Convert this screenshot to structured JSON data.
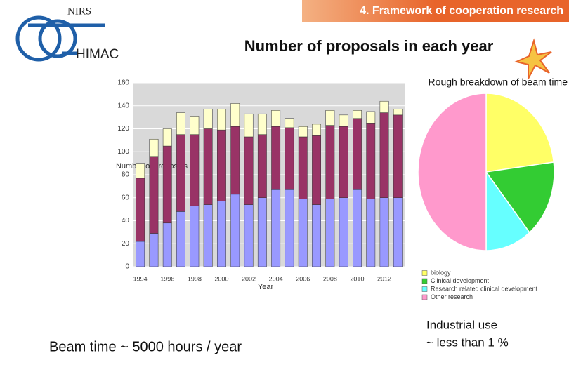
{
  "header": {
    "org": "NIRS",
    "facility": "HIMAC",
    "section": "4. Framework of cooperation research",
    "title": "Number of proposals in each year"
  },
  "chart_data": [
    {
      "type": "bar",
      "stacked": true,
      "x_label": "Year",
      "y_label": "Number of proposals",
      "categories": [
        "1994",
        null,
        "1996",
        null,
        "1998",
        null,
        "2000",
        null,
        "2002",
        null,
        "2004",
        null,
        "2006",
        null,
        "2008",
        null,
        "2010",
        null,
        "2012",
        null
      ],
      "series": [
        {
          "color": "#9999ff",
          "values": [
            22,
            29,
            38,
            48,
            53,
            54,
            57,
            63,
            54,
            60,
            67,
            67,
            59,
            54,
            59,
            60,
            67,
            59,
            60,
            60
          ]
        },
        {
          "color": "#993366",
          "values": [
            55,
            67,
            67,
            67,
            62,
            66,
            62,
            59,
            59,
            55,
            55,
            54,
            54,
            60,
            64,
            62,
            62,
            66,
            74,
            72
          ]
        },
        {
          "color": "#ffffcc",
          "values": [
            13,
            15,
            15,
            19,
            16,
            17,
            18,
            20,
            20,
            18,
            14,
            8,
            9,
            10,
            13,
            10,
            7,
            10,
            10,
            5
          ]
        }
      ],
      "ylim": [
        0,
        160
      ],
      "yticks": [
        0,
        20,
        40,
        60,
        80,
        100,
        120,
        140,
        160
      ],
      "grid": true
    },
    {
      "type": "pie",
      "title": "Rough breakdown of beam time",
      "categories": [
        "biology",
        "Clinical development",
        "Research related clinical development",
        "Other research"
      ],
      "values": [
        23,
        16,
        11,
        50
      ],
      "colors": [
        "#ffff66",
        "#33cc33",
        "#66ffff",
        "#ff99cc"
      ],
      "legend": "bottom"
    }
  ],
  "notes": {
    "beam_time": "Beam time ~ 5000 hours / year",
    "industrial_1": "Industrial use",
    "industrial_2": "~ less than 1 %"
  }
}
